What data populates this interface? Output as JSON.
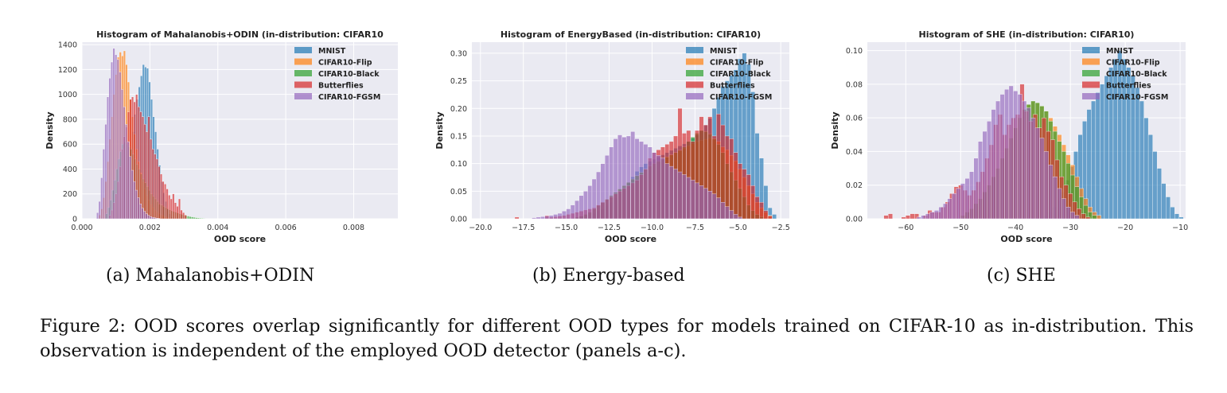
{
  "figure": {
    "caption": "Figure 2: OOD scores overlap significantly for different OOD types for models trained on CIFAR-10 as in-distribution. This observation is independent of the employed OOD detector (panels a-c).",
    "subcaptions": [
      "(a) Mahalanobis+ODIN",
      "(b) Energy-based",
      "(c) SHE"
    ]
  },
  "legend": {
    "entries": [
      {
        "label": "MNIST",
        "color": "#1f77b4"
      },
      {
        "label": "CIFAR10-Flip",
        "color": "#ff7f0e"
      },
      {
        "label": "CIFAR10-Black",
        "color": "#2ca02c"
      },
      {
        "label": "Butterflies",
        "color": "#d62728"
      },
      {
        "label": "CIFAR10-FGSM",
        "color": "#9467bd"
      }
    ],
    "placement": "top-right"
  },
  "chart_data": [
    {
      "type": "bar",
      "subtype": "overlapping-histogram",
      "title": "Histogram of Mahalanobis+ODIN (in-distribution: CIFAR10",
      "xlabel": "OOD score",
      "ylabel": "Density",
      "xlim": [
        0.0,
        0.0093
      ],
      "ylim": [
        0,
        1420
      ],
      "xticks": [
        0.0,
        0.002,
        0.004,
        0.006,
        0.008
      ],
      "xtick_labels": [
        "0.000",
        "0.002",
        "0.004",
        "0.006",
        "0.008"
      ],
      "yticks": [
        0,
        200,
        400,
        600,
        800,
        1000,
        1200,
        1400
      ],
      "ytick_labels": [
        "0",
        "200",
        "400",
        "600",
        "800",
        "1000",
        "1200",
        "1400"
      ],
      "grid": true,
      "legend": "top-right",
      "bin_width": 6e-05,
      "series": [
        {
          "name": "MNIST",
          "bin_start": 0.001,
          "values": [
            20,
            40,
            80,
            140,
            220,
            320,
            440,
            560,
            700,
            840,
            960,
            1060,
            1150,
            1240,
            1220,
            1210,
            1100,
            960,
            820,
            700,
            560,
            430,
            300,
            210,
            140,
            80,
            40,
            15
          ]
        },
        {
          "name": "CIFAR10-Flip",
          "bin_start": 0.0005,
          "values": [
            30,
            80,
            170,
            300,
            460,
            640,
            820,
            1000,
            1160,
            1300,
            1340,
            1310,
            1350,
            1240,
            1100,
            960,
            820,
            680,
            560,
            460,
            370,
            300,
            240,
            190,
            150,
            115,
            90,
            70,
            55,
            42,
            32,
            25,
            18,
            12,
            8,
            5,
            3
          ]
        },
        {
          "name": "CIFAR10-Black",
          "bin_start": 0.0007,
          "values": [
            40,
            90,
            150,
            230,
            310,
            400,
            480,
            540,
            600,
            620,
            600,
            580,
            560,
            520,
            480,
            440,
            400,
            360,
            320,
            290,
            260,
            230,
            200,
            180,
            160,
            140,
            120,
            110,
            100,
            90,
            80,
            72,
            64,
            58,
            52,
            46,
            40,
            35,
            30,
            26,
            22,
            18,
            15,
            12,
            9,
            7,
            5,
            4,
            3,
            2
          ]
        },
        {
          "name": "Butterflies",
          "bin_start": 0.0008,
          "values": [
            30,
            70,
            130,
            200,
            300,
            420,
            560,
            660,
            740,
            860,
            960,
            980,
            940,
            1000,
            900,
            860,
            820,
            760,
            700,
            820,
            640,
            560,
            520,
            480,
            420,
            360,
            300,
            280,
            240,
            190,
            160,
            200,
            130,
            100,
            160,
            70,
            50,
            30
          ]
        },
        {
          "name": "CIFAR10-FGSM",
          "bin_start": 0.00043,
          "values": [
            50,
            140,
            330,
            560,
            760,
            980,
            1130,
            1260,
            1370,
            1320,
            1280,
            1180,
            1040,
            900,
            760,
            620,
            500,
            390,
            300,
            230,
            170,
            120,
            85,
            60,
            40,
            28,
            18,
            12,
            8,
            5,
            3
          ]
        }
      ]
    },
    {
      "type": "bar",
      "subtype": "overlapping-histogram",
      "title": "Histogram of EnergyBased (in-distribution: CIFAR10)",
      "xlabel": "OOD score",
      "ylabel": "Density",
      "xlim": [
        -20.5,
        -2.0
      ],
      "ylim": [
        0,
        0.32
      ],
      "xticks": [
        -20.0,
        -17.5,
        -15.0,
        -12.5,
        -10.0,
        -7.5,
        -5.0,
        -2.5
      ],
      "xtick_labels": [
        "−20.0",
        "−17.5",
        "−15.0",
        "−12.5",
        "−10.0",
        "−7.5",
        "−5.0",
        "−2.5"
      ],
      "yticks": [
        0.0,
        0.05,
        0.1,
        0.15,
        0.2,
        0.25,
        0.3
      ],
      "ytick_labels": [
        "0.00",
        "0.05",
        "0.10",
        "0.15",
        "0.20",
        "0.25",
        "0.30"
      ],
      "grid": true,
      "legend": "top-right",
      "bin_width": 0.25,
      "series": [
        {
          "name": "MNIST",
          "bin_start": -14.5,
          "values": [
            0.003,
            0.004,
            0.006,
            0.008,
            0.01,
            0.014,
            0.018,
            0.024,
            0.03,
            0.038,
            0.046,
            0.056,
            0.066,
            0.076,
            0.086,
            0.094,
            0.1,
            0.104,
            0.108,
            0.112,
            0.116,
            0.12,
            0.124,
            0.128,
            0.132,
            0.136,
            0.14,
            0.146,
            0.152,
            0.16,
            0.17,
            0.182,
            0.2,
            0.22,
            0.24,
            0.25,
            0.26,
            0.27,
            0.29,
            0.3,
            0.28,
            0.23,
            0.155,
            0.11,
            0.06,
            0.02,
            0.008
          ]
        },
        {
          "name": "CIFAR10-Flip",
          "bin_start": -14.5,
          "values": [
            0.003,
            0.005,
            0.008,
            0.012,
            0.018,
            0.024,
            0.03,
            0.036,
            0.042,
            0.048,
            0.054,
            0.06,
            0.066,
            0.072,
            0.078,
            0.084,
            0.09,
            0.096,
            0.1,
            0.104,
            0.108,
            0.112,
            0.116,
            0.12,
            0.124,
            0.128,
            0.132,
            0.136,
            0.14,
            0.142,
            0.144,
            0.146,
            0.145,
            0.14,
            0.13,
            0.125,
            0.115,
            0.105,
            0.09,
            0.075,
            0.06,
            0.045,
            0.03,
            0.02,
            0.012,
            0.006
          ]
        },
        {
          "name": "CIFAR10-Black",
          "bin_start": -14.5,
          "values": [
            0.003,
            0.005,
            0.008,
            0.012,
            0.018,
            0.024,
            0.03,
            0.036,
            0.042,
            0.048,
            0.054,
            0.06,
            0.066,
            0.072,
            0.078,
            0.084,
            0.09,
            0.096,
            0.1,
            0.104,
            0.108,
            0.112,
            0.116,
            0.12,
            0.124,
            0.13,
            0.14,
            0.148,
            0.155,
            0.16,
            0.158,
            0.154,
            0.145,
            0.135,
            0.12,
            0.1,
            0.085,
            0.07,
            0.055,
            0.04,
            0.025,
            0.015,
            0.008,
            0.004
          ]
        },
        {
          "name": "Butterflies",
          "bin_start": -18.0,
          "values": [
            0.003,
            0.0,
            0.0,
            0.0,
            0.0,
            0.0,
            0.0,
            0.006,
            0.003,
            0.004,
            0.005,
            0.006,
            0.008,
            0.01,
            0.012,
            0.014,
            0.016,
            0.018,
            0.02,
            0.025,
            0.03,
            0.035,
            0.04,
            0.045,
            0.05,
            0.055,
            0.06,
            0.065,
            0.07,
            0.08,
            0.09,
            0.11,
            0.12,
            0.125,
            0.13,
            0.135,
            0.14,
            0.15,
            0.2,
            0.155,
            0.16,
            0.14,
            0.16,
            0.185,
            0.17,
            0.185,
            0.15,
            0.19,
            0.17,
            0.15,
            0.145,
            0.12,
            0.1,
            0.09,
            0.08,
            0.06,
            0.04,
            0.03,
            0.015,
            0.005
          ]
        },
        {
          "name": "CIFAR10-FGSM",
          "bin_start": -17.0,
          "values": [
            0.002,
            0.003,
            0.004,
            0.005,
            0.006,
            0.008,
            0.01,
            0.014,
            0.018,
            0.025,
            0.033,
            0.042,
            0.05,
            0.06,
            0.072,
            0.085,
            0.1,
            0.115,
            0.13,
            0.145,
            0.152,
            0.148,
            0.15,
            0.158,
            0.145,
            0.14,
            0.135,
            0.13,
            0.12,
            0.115,
            0.11,
            0.1,
            0.095,
            0.09,
            0.085,
            0.08,
            0.075,
            0.07,
            0.065,
            0.06,
            0.055,
            0.05,
            0.045,
            0.038,
            0.03,
            0.022,
            0.015,
            0.008,
            0.003
          ]
        }
      ]
    },
    {
      "type": "bar",
      "subtype": "overlapping-histogram",
      "title": "Histogram of SHE (in-distribution: CIFAR10)",
      "xlabel": "OOD score",
      "ylabel": "Density",
      "xlim": [
        -67.0,
        -9.0
      ],
      "ylim": [
        0,
        0.105
      ],
      "xticks": [
        -60,
        -50,
        -40,
        -30,
        -20,
        -10
      ],
      "xtick_labels": [
        "−60",
        "−50",
        "−40",
        "−30",
        "−20",
        "−10"
      ],
      "yticks": [
        0.0,
        0.02,
        0.04,
        0.06,
        0.08,
        0.1
      ],
      "ytick_labels": [
        "0.00",
        "0.02",
        "0.04",
        "0.06",
        "0.08",
        "0.10"
      ],
      "grid": true,
      "legend": "top-right",
      "bin_width": 0.8,
      "series": [
        {
          "name": "MNIST",
          "bin_start": -35.0,
          "values": [
            0.002,
            0.004,
            0.007,
            0.011,
            0.016,
            0.023,
            0.031,
            0.04,
            0.05,
            0.058,
            0.065,
            0.07,
            0.075,
            0.08,
            0.085,
            0.09,
            0.095,
            0.1,
            0.095,
            0.09,
            0.085,
            0.078,
            0.07,
            0.06,
            0.05,
            0.04,
            0.03,
            0.021,
            0.013,
            0.007,
            0.003,
            0.001
          ]
        },
        {
          "name": "CIFAR10-Flip",
          "bin_start": -50.0,
          "values": [
            0.002,
            0.004,
            0.006,
            0.009,
            0.012,
            0.016,
            0.02,
            0.025,
            0.03,
            0.036,
            0.042,
            0.048,
            0.054,
            0.06,
            0.065,
            0.068,
            0.07,
            0.069,
            0.067,
            0.064,
            0.06,
            0.055,
            0.05,
            0.044,
            0.038,
            0.032,
            0.025,
            0.018,
            0.012,
            0.007,
            0.004,
            0.002
          ]
        },
        {
          "name": "CIFAR10-Black",
          "bin_start": -50.0,
          "values": [
            0.002,
            0.004,
            0.006,
            0.009,
            0.012,
            0.016,
            0.02,
            0.025,
            0.03,
            0.036,
            0.042,
            0.048,
            0.054,
            0.06,
            0.065,
            0.068,
            0.07,
            0.069,
            0.067,
            0.064,
            0.058,
            0.052,
            0.046,
            0.04,
            0.033,
            0.026,
            0.019,
            0.013,
            0.008,
            0.004,
            0.002
          ]
        },
        {
          "name": "Butterflies",
          "bin_start": -64.0,
          "values": [
            0.002,
            0.003,
            0.0,
            0.0,
            0.001,
            0.002,
            0.003,
            0.003,
            0.0,
            0.002,
            0.005,
            0.004,
            0.004,
            0.007,
            0.01,
            0.015,
            0.019,
            0.02,
            0.017,
            0.014,
            0.017,
            0.022,
            0.028,
            0.036,
            0.044,
            0.056,
            0.062,
            0.05,
            0.056,
            0.06,
            0.062,
            0.08,
            0.064,
            0.058,
            0.062,
            0.054,
            0.06,
            0.052,
            0.047,
            0.035,
            0.025,
            0.02,
            0.015,
            0.01,
            0.006,
            0.003,
            0.001
          ]
        },
        {
          "name": "CIFAR10-FGSM",
          "bin_start": -58.0,
          "values": [
            0.001,
            0.002,
            0.003,
            0.004,
            0.005,
            0.007,
            0.009,
            0.012,
            0.015,
            0.018,
            0.021,
            0.024,
            0.028,
            0.036,
            0.046,
            0.052,
            0.058,
            0.065,
            0.07,
            0.074,
            0.077,
            0.079,
            0.076,
            0.074,
            0.07,
            0.066,
            0.06,
            0.054,
            0.048,
            0.04,
            0.032,
            0.025,
            0.018,
            0.012,
            0.007,
            0.004,
            0.002
          ]
        }
      ]
    }
  ]
}
